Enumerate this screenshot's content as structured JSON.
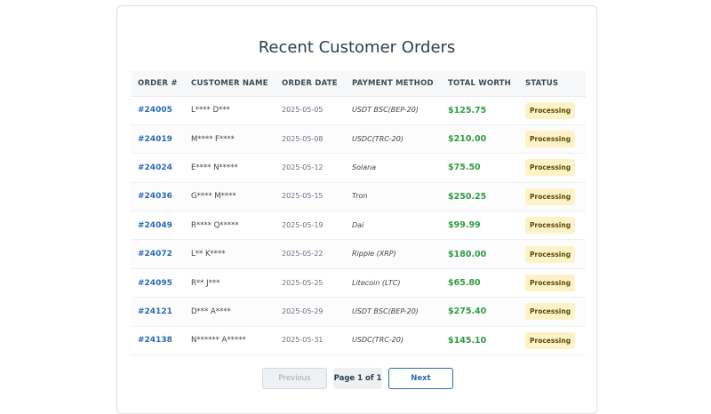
{
  "page": {
    "title": "Recent Customer Orders"
  },
  "table": {
    "headers": {
      "order": "ORDER #",
      "customer": "CUSTOMER NAME",
      "date": "ORDER DATE",
      "payment": "PAYMENT METHOD",
      "worth": "TOTAL WORTH",
      "status": "STATUS"
    },
    "rows": [
      {
        "order": "#24005",
        "customer": "L**** D***",
        "date": "2025-05-05",
        "payment": "USDT BSC(BEP-20)",
        "worth": "$125.75",
        "status": "Processing"
      },
      {
        "order": "#24019",
        "customer": "M**** F****",
        "date": "2025-05-08",
        "payment": "USDC(TRC-20)",
        "worth": "$210.00",
        "status": "Processing"
      },
      {
        "order": "#24024",
        "customer": "E**** N*****",
        "date": "2025-05-12",
        "payment": "Solana",
        "worth": "$75.50",
        "status": "Processing"
      },
      {
        "order": "#24036",
        "customer": "G**** M****",
        "date": "2025-05-15",
        "payment": "Tron",
        "worth": "$250.25",
        "status": "Processing"
      },
      {
        "order": "#24049",
        "customer": "R**** Q*****",
        "date": "2025-05-19",
        "payment": "Dai",
        "worth": "$99.99",
        "status": "Processing"
      },
      {
        "order": "#24072",
        "customer": "L** K****",
        "date": "2025-05-22",
        "payment": "Ripple (XRP)",
        "worth": "$180.00",
        "status": "Processing"
      },
      {
        "order": "#24095",
        "customer": "R** J***",
        "date": "2025-05-25",
        "payment": "Litecoin (LTC)",
        "worth": "$65.80",
        "status": "Processing"
      },
      {
        "order": "#24121",
        "customer": "D*** A****",
        "date": "2025-05-29",
        "payment": "USDT BSC(BEP-20)",
        "worth": "$275.40",
        "status": "Processing"
      },
      {
        "order": "#24138",
        "customer": "N****** A*****",
        "date": "2025-05-31",
        "payment": "USDC(TRC-20)",
        "worth": "$145.10",
        "status": "Processing"
      }
    ]
  },
  "pagination": {
    "previous_label": "Previous",
    "page_indicator": "Page 1 of 1",
    "next_label": "Next"
  },
  "colors": {
    "order_link": "#2b6cb0",
    "worth": "#2f9e44",
    "status_badge_bg": "#fdf3c6"
  }
}
